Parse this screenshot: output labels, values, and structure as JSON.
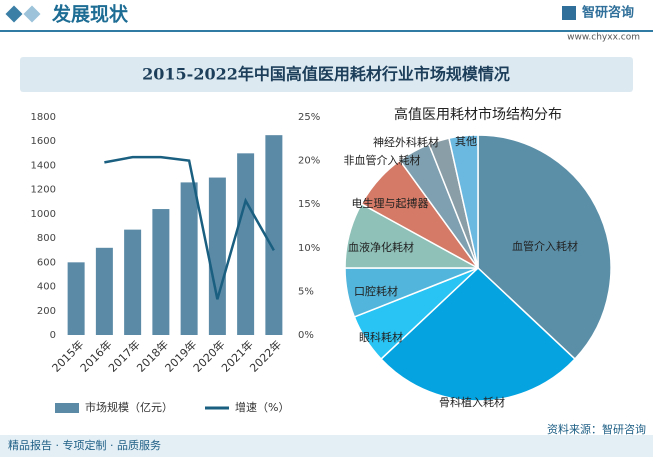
{
  "header": {
    "title": "发展现状",
    "brand": "智研咨询",
    "url": "www.chyxx.com"
  },
  "banner": "2015-2022年中国高值医用耗材行业市场规模情况",
  "footer": {
    "left": "精品报告 · 专项定制 · 品质服务",
    "source": "资料来源：智研咨询"
  },
  "chart_data": [
    {
      "type": "bar",
      "categories": [
        "2015年",
        "2016年",
        "2017年",
        "2018年",
        "2019年",
        "2020年",
        "2021年",
        "2022年"
      ],
      "series": [
        {
          "name": "市场规模（亿元）",
          "color": "#5b8aa6",
          "values": [
            600,
            720,
            870,
            1040,
            1260,
            1300,
            1500,
            1650
          ]
        },
        {
          "name": "增速（%）",
          "type": "line",
          "axis": "y2",
          "color": "#1a5f80",
          "values": [
            null,
            19.8,
            20.4,
            20.4,
            20,
            4.1,
            15.4,
            9.7
          ]
        }
      ],
      "ylim": [
        0,
        1800
      ],
      "yticks": [
        0,
        200,
        400,
        600,
        800,
        1000,
        1200,
        1400,
        1600,
        1800
      ],
      "y2lim": [
        0,
        25
      ],
      "y2ticks": [
        {
          "value": 0,
          "label": "0%"
        },
        {
          "value": 5,
          "label": "5%"
        },
        {
          "value": 10,
          "label": "10%"
        },
        {
          "value": 15,
          "label": "15%"
        },
        {
          "value": 20,
          "label": "20%"
        },
        {
          "value": 25,
          "label": "25%"
        }
      ],
      "legend": "bottom"
    },
    {
      "type": "pie",
      "title": "高值医用耗材市场结构分布",
      "categories": [
        "血管介入耗材",
        "骨科植入耗材",
        "眼科耗材",
        "口腔耗材",
        "血液净化耗材",
        "电生理与起搏器",
        "非血管介入耗材",
        "神经外科耗材",
        "其他"
      ],
      "values": [
        37,
        26,
        6,
        6,
        8,
        7,
        4,
        2.5,
        3.5
      ],
      "colors": [
        "#5b8fa8",
        "#05a3e0",
        "#29c4f4",
        "#52b6dc",
        "#8fc1b8",
        "#d47a66",
        "#7fa0b0",
        "#8a9ea8",
        "#6bb8e0"
      ]
    }
  ]
}
